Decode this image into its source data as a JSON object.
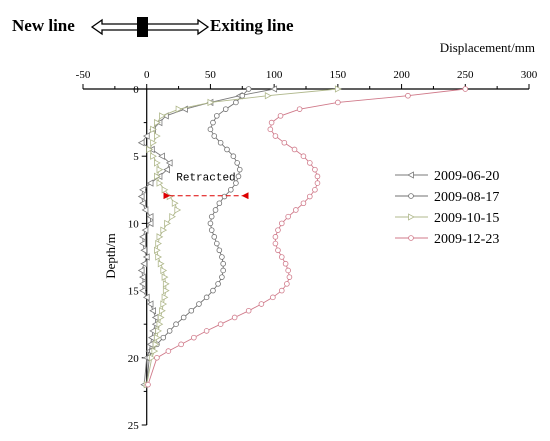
{
  "header": {
    "left_label": "New line",
    "right_label": "Exiting line"
  },
  "chart_data": {
    "type": "line",
    "xlabel": "Displacement/mm",
    "ylabel": "Depth/m",
    "xlim": [
      -50,
      300
    ],
    "ylim": [
      0,
      25
    ],
    "x_axis_position": "top",
    "y_axis_inverted": true,
    "x_ticks": [
      -50,
      0,
      50,
      100,
      150,
      200,
      250,
      300
    ],
    "y_ticks": [
      0,
      5,
      10,
      15,
      20,
      25
    ],
    "grid": false,
    "legend_placement": "right",
    "annotation": {
      "text": "Retracted",
      "x_range": [
        18,
        75
      ],
      "y": 6.9
    },
    "series": [
      {
        "name": "2009-06-20",
        "color": "#7a7a7a",
        "marker": "triangle-left",
        "x": [
          100,
          73,
          50,
          30,
          15,
          10,
          5,
          0,
          -4,
          4,
          12,
          18,
          16,
          10,
          3,
          -3,
          -4,
          -3,
          -1,
          3,
          3,
          -1,
          -3,
          -3,
          -2,
          0,
          -2,
          -4,
          -3,
          -3,
          -3,
          0,
          3,
          5,
          7,
          7,
          5,
          4,
          3,
          2,
          0,
          -2
        ],
        "y": [
          0,
          0.5,
          1,
          1.5,
          2,
          2.5,
          3,
          3.5,
          4,
          4.5,
          5,
          5.5,
          6,
          6.5,
          7,
          7.5,
          8,
          8.5,
          9,
          9.5,
          10,
          10.5,
          11,
          11.5,
          12,
          12.5,
          13,
          13.5,
          14,
          14.5,
          15,
          15.5,
          16,
          16.5,
          17,
          17.5,
          18,
          18.5,
          19,
          19.5,
          20,
          22
        ]
      },
      {
        "name": "2009-08-17",
        "color": "#707070",
        "marker": "circle",
        "x": [
          80,
          75,
          70,
          62,
          55,
          52,
          50,
          53,
          58,
          63,
          68,
          71,
          73,
          72,
          70,
          66,
          61,
          57,
          54,
          51,
          50,
          51,
          53,
          55,
          57,
          59,
          60,
          60,
          59,
          56,
          52,
          47,
          41,
          35,
          29,
          23,
          18,
          13,
          8,
          4,
          2,
          0
        ],
        "y": [
          0,
          0.5,
          1,
          1.5,
          2,
          2.5,
          3,
          3.5,
          4,
          4.5,
          5,
          5.5,
          6,
          6.5,
          7,
          7.5,
          8,
          8.5,
          9,
          9.5,
          10,
          10.5,
          11,
          11.5,
          12,
          12.5,
          13,
          13.5,
          14,
          14.5,
          15,
          15.5,
          16,
          16.5,
          17,
          17.5,
          18,
          18.5,
          19,
          19.5,
          20,
          22
        ]
      },
      {
        "name": "2009-10-15",
        "color": "#b0b88c",
        "marker": "triangle-right",
        "x": [
          150,
          95,
          50,
          25,
          12,
          8,
          5,
          8,
          5,
          2,
          5,
          8,
          10,
          8,
          10,
          14,
          18,
          22,
          24,
          20,
          16,
          13,
          10,
          9,
          8,
          9,
          11,
          13,
          14,
          15,
          15,
          14,
          13,
          12,
          11,
          10,
          9,
          8,
          7,
          6,
          4,
          0
        ],
        "y": [
          0,
          0.5,
          1,
          1.5,
          2,
          2.5,
          3,
          3.5,
          4,
          4.5,
          5,
          5.5,
          6,
          6.5,
          7,
          7.5,
          8,
          8.5,
          9,
          9.5,
          10,
          10.5,
          11,
          11.5,
          12,
          12.5,
          13,
          13.5,
          14,
          14.5,
          15,
          15.5,
          16,
          16.5,
          17,
          17.5,
          18,
          18.5,
          19,
          19.5,
          20,
          22
        ]
      },
      {
        "name": "2009-12-23",
        "color": "#d07a8a",
        "marker": "circle",
        "x": [
          250,
          205,
          150,
          120,
          105,
          98,
          97,
          101,
          108,
          116,
          123,
          128,
          132,
          134,
          134,
          132,
          128,
          123,
          117,
          111,
          106,
          103,
          101,
          101,
          103,
          106,
          109,
          111,
          112,
          110,
          106,
          99,
          90,
          80,
          69,
          58,
          47,
          37,
          27,
          17,
          8,
          1
        ],
        "y": [
          0,
          0.5,
          1,
          1.5,
          2,
          2.5,
          3,
          3.5,
          4,
          4.5,
          5,
          5.5,
          6,
          6.5,
          7,
          7.5,
          8,
          8.5,
          9,
          9.5,
          10,
          10.5,
          11,
          11.5,
          12,
          12.5,
          13,
          13.5,
          14,
          14.5,
          15,
          15.5,
          16,
          16.5,
          17,
          17.5,
          18,
          18.5,
          19,
          19.5,
          20,
          22
        ]
      }
    ]
  }
}
